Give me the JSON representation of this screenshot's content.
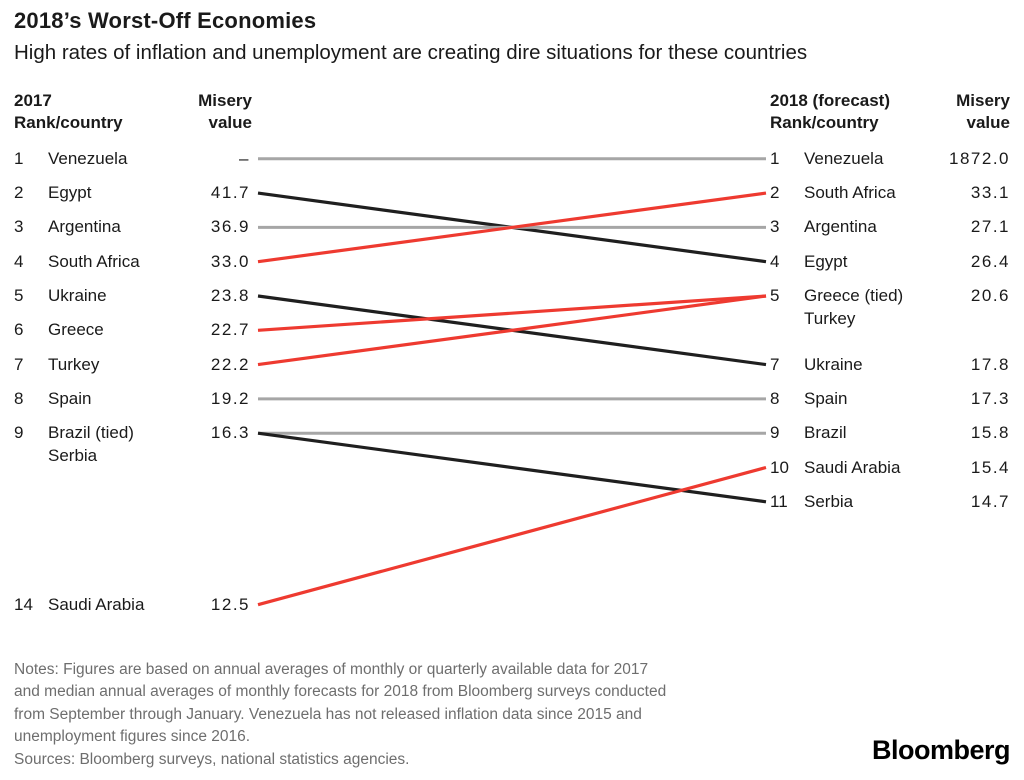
{
  "header": {
    "title": "2018’s Worst-Off Economies",
    "subtitle": "High rates of inflation and unemployment are creating dire situations for these countries"
  },
  "columns": {
    "left_rank": {
      "line1": "2017",
      "line2": "Rank/country"
    },
    "left_value": {
      "line1": "Misery",
      "line2": "value"
    },
    "right_rank": {
      "line1": "2018 (forecast)",
      "line2": "Rank/country"
    },
    "right_value": {
      "line1": "Misery",
      "line2": "value"
    }
  },
  "chart_data": {
    "type": "slope",
    "title": "2018's Worst-Off Economies",
    "left_axis_label": "2017 Rank/country",
    "right_axis_label": "2018 (forecast) Rank/country",
    "value_label": "Misery value",
    "left_rows": [
      {
        "rank": 1,
        "country": "Venezuela",
        "value": "–"
      },
      {
        "rank": 2,
        "country": "Egypt",
        "value": "41.7"
      },
      {
        "rank": 3,
        "country": "Argentina",
        "value": "36.9"
      },
      {
        "rank": 4,
        "country": "South Africa",
        "value": "33.0"
      },
      {
        "rank": 5,
        "country": "Ukraine",
        "value": "23.8"
      },
      {
        "rank": 6,
        "country": "Greece",
        "value": "22.7"
      },
      {
        "rank": 7,
        "country": "Turkey",
        "value": "22.2"
      },
      {
        "rank": 8,
        "country": "Spain",
        "value": "19.2"
      },
      {
        "rank": 9,
        "country": "Brazil (tied)",
        "country2": "Serbia",
        "value": "16.3"
      },
      {
        "rank": 14,
        "country": "Saudi Arabia",
        "value": "12.5"
      }
    ],
    "right_rows": [
      {
        "rank": 1,
        "country": "Venezuela",
        "value": "1872.0"
      },
      {
        "rank": 2,
        "country": "South Africa",
        "value": "33.1"
      },
      {
        "rank": 3,
        "country": "Argentina",
        "value": "27.1"
      },
      {
        "rank": 4,
        "country": "Egypt",
        "value": "26.4"
      },
      {
        "rank": 5,
        "country": "Greece (tied)",
        "country2": "Turkey",
        "value": "20.6"
      },
      {
        "rank": 7,
        "country": "Ukraine",
        "value": "17.8"
      },
      {
        "rank": 8,
        "country": "Spain",
        "value": "17.3"
      },
      {
        "rank": 9,
        "country": "Brazil",
        "value": "15.8"
      },
      {
        "rank": 10,
        "country": "Saudi Arabia",
        "value": "15.4"
      },
      {
        "rank": 11,
        "country": "Serbia",
        "value": "14.7"
      }
    ],
    "links": [
      {
        "country": "Venezuela",
        "from": 1,
        "to": 1,
        "status": "unchanged"
      },
      {
        "country": "Egypt",
        "from": 2,
        "to": 4,
        "status": "improved"
      },
      {
        "country": "Argentina",
        "from": 3,
        "to": 3,
        "status": "unchanged"
      },
      {
        "country": "South Africa",
        "from": 4,
        "to": 2,
        "status": "worsened"
      },
      {
        "country": "Ukraine",
        "from": 5,
        "to": 7,
        "status": "improved"
      },
      {
        "country": "Greece",
        "from": 6,
        "to": 5,
        "status": "worsened"
      },
      {
        "country": "Turkey",
        "from": 7,
        "to": 5,
        "status": "worsened"
      },
      {
        "country": "Spain",
        "from": 8,
        "to": 8,
        "status": "unchanged"
      },
      {
        "country": "Brazil",
        "from": 9,
        "to": 9,
        "status": "unchanged"
      },
      {
        "country": "Serbia",
        "from": 9,
        "to": 11,
        "status": "improved"
      },
      {
        "country": "Saudi Arabia",
        "from": 14,
        "to": 10,
        "status": "worsened"
      }
    ],
    "colors": {
      "worsened": "#ee3a30",
      "improved": "#1f1f1f",
      "unchanged": "#a6a6a6"
    }
  },
  "notes_lines": [
    "Notes: Figures are based on annual averages of monthly or quarterly available data for 2017",
    "and median annual averages of monthly forecasts for 2018 from Bloomberg surveys conducted",
    "from September through January. Venezuela has not released inflation data since 2015 and",
    "unemployment figures since 2016."
  ],
  "sources": "Sources: Bloomberg surveys, national statistics agencies.",
  "brand": "Bloomberg"
}
